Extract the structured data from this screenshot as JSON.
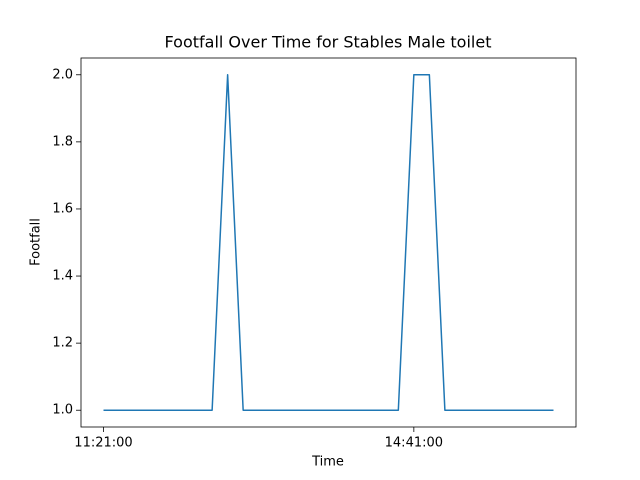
{
  "chart_data": {
    "type": "line",
    "title": "Footfall Over Time for Stables Male toilet",
    "xlabel": "Time",
    "ylabel": "Footfall",
    "x": [
      "11:21:00",
      "11:31:00",
      "11:41:00",
      "11:51:00",
      "12:01:00",
      "12:11:00",
      "12:21:00",
      "12:31:00",
      "12:41:00",
      "12:51:00",
      "13:01:00",
      "13:11:00",
      "13:21:00",
      "13:31:00",
      "13:41:00",
      "13:51:00",
      "14:01:00",
      "14:11:00",
      "14:21:00",
      "14:31:00",
      "14:41:00",
      "14:51:00",
      "15:01:00",
      "15:11:00",
      "15:21:00",
      "15:31:00",
      "15:41:00",
      "15:51:00",
      "16:01:00",
      "16:11:00"
    ],
    "values": [
      1,
      1,
      1,
      1,
      1,
      1,
      1,
      1,
      2,
      1,
      1,
      1,
      1,
      1,
      1,
      1,
      1,
      1,
      1,
      1,
      2,
      2,
      1,
      1,
      1,
      1,
      1,
      1,
      1,
      1
    ],
    "color": "#1f77b4",
    "xlim": [
      "11:06:30",
      "16:25:30"
    ],
    "xticks": [
      "11:21:00",
      "14:41:00"
    ],
    "ylim": [
      0.95,
      2.05
    ],
    "yticks": [
      {
        "value": 1,
        "label": "1.0"
      },
      1.2,
      1.4,
      1.6,
      1.8,
      {
        "value": 2,
        "label": "2.0"
      }
    ],
    "grid": false
  }
}
